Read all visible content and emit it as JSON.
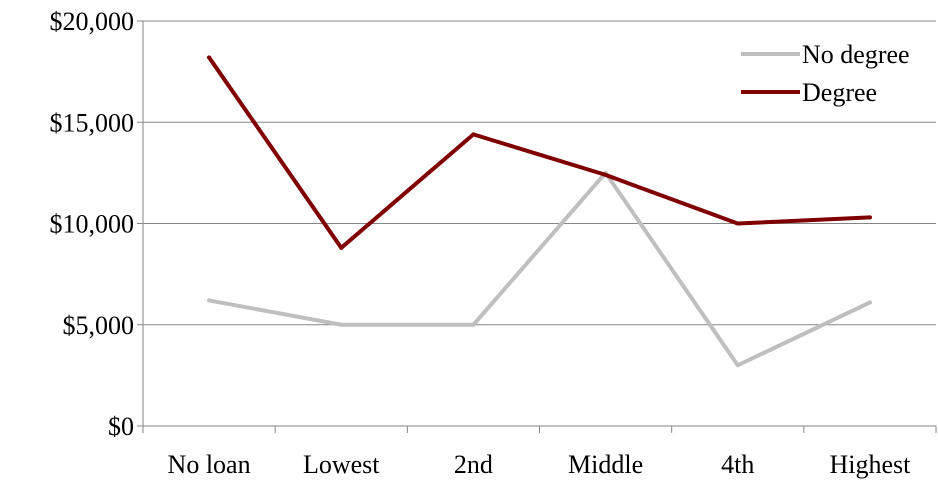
{
  "chart_data": {
    "type": "line",
    "categories": [
      "No loan",
      "Lowest",
      "2nd",
      "Middle",
      "4th",
      "Highest"
    ],
    "series": [
      {
        "name": "No degree",
        "values": [
          6200,
          5000,
          5000,
          12500,
          3000,
          6100
        ],
        "color": "#bfbfbf"
      },
      {
        "name": "Degree",
        "values": [
          18200,
          8800,
          14400,
          12400,
          10000,
          10300
        ],
        "color": "#800000"
      }
    ],
    "ylim": [
      0,
      20000
    ],
    "yticks": [
      0,
      5000,
      10000,
      15000,
      20000
    ],
    "ytick_labels": [
      "$0",
      "$5,000",
      "$10,000",
      "$15,000",
      "$20,000"
    ],
    "grid": true,
    "legend": "top-right"
  }
}
